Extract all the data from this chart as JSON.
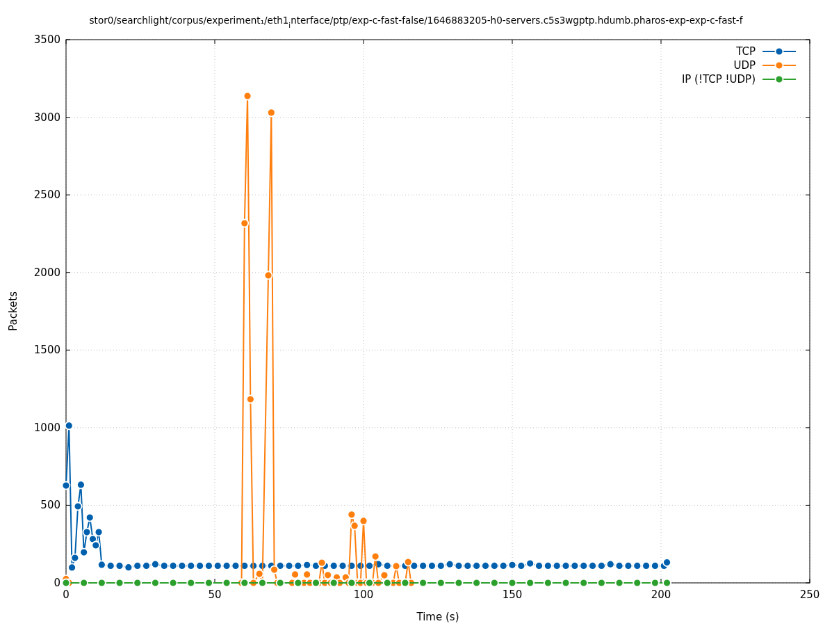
{
  "chart_data": {
    "type": "line",
    "title": "stor0/searchlight/corpus/experiment₁/eth1$_{i}$nterface/ptp/exp-c-fast-false/1646883205-h0-servers.c5s3wgptp.hdumb.pharos-exp-exp-c-fast-f",
    "xlabel": "Time (s)",
    "ylabel": "Packets",
    "xlim": [
      0,
      250
    ],
    "ylim": [
      0,
      3500
    ],
    "xticks": [
      0,
      50,
      100,
      150,
      200,
      250
    ],
    "yticks": [
      0,
      500,
      1000,
      1500,
      2000,
      2500,
      3000,
      3500
    ],
    "grid": true,
    "legend": "top right",
    "marker": "circle",
    "line_style": "solid",
    "series": [
      {
        "name": "TCP",
        "color": "#0060ad",
        "x": [
          0,
          1,
          2,
          3,
          4,
          5,
          6,
          7,
          8,
          9,
          10,
          11,
          12,
          15,
          18,
          21,
          24,
          27,
          30,
          33,
          36,
          39,
          42,
          45,
          48,
          51,
          54,
          57,
          60,
          63,
          66,
          69,
          72,
          75,
          78,
          81,
          84,
          87,
          90,
          93,
          96,
          99,
          102,
          105,
          108,
          111,
          114,
          117,
          120,
          123,
          126,
          129,
          132,
          135,
          138,
          141,
          144,
          147,
          150,
          153,
          156,
          159,
          162,
          165,
          168,
          171,
          174,
          177,
          180,
          183,
          186,
          189,
          192,
          195,
          198,
          201,
          202
        ],
        "values": [
          627,
          1013,
          99,
          161,
          493,
          632,
          197,
          327,
          421,
          282,
          242,
          327,
          117,
          110,
          110,
          100,
          110,
          110,
          120,
          110,
          110,
          110,
          110,
          110,
          110,
          110,
          110,
          110,
          110,
          110,
          110,
          110,
          110,
          110,
          110,
          115,
          110,
          110,
          110,
          110,
          110,
          110,
          110,
          120,
          110,
          110,
          110,
          110,
          110,
          110,
          110,
          120,
          110,
          110,
          110,
          110,
          110,
          110,
          115,
          110,
          125,
          110,
          110,
          110,
          110,
          110,
          110,
          110,
          110,
          120,
          110,
          110,
          110,
          110,
          110,
          110,
          132
        ]
      },
      {
        "name": "UDP",
        "color": "#ff7f0e",
        "x": [
          0,
          1,
          30,
          59,
          60,
          61,
          62,
          63,
          65,
          66,
          68,
          69,
          70,
          71,
          76,
          77,
          78,
          80,
          81,
          82,
          85,
          86,
          87,
          88,
          89,
          91,
          92,
          94,
          95,
          96,
          97,
          98,
          99,
          100,
          101,
          103,
          104,
          105,
          107,
          108,
          110,
          111,
          112,
          114,
          115,
          116,
          202
        ],
        "values": [
          25,
          0,
          0,
          0,
          2317,
          3137,
          1183,
          0,
          58,
          0,
          1981,
          3030,
          85,
          0,
          0,
          54,
          0,
          0,
          54,
          0,
          0,
          130,
          0,
          50,
          0,
          35,
          0,
          35,
          0,
          440,
          368,
          0,
          0,
          399,
          0,
          0,
          170,
          0,
          49,
          0,
          0,
          108,
          0,
          0,
          134,
          0,
          0
        ]
      },
      {
        "name": "IP (!TCP  !UDP)",
        "color": "#2ca02c",
        "x": [
          0,
          6,
          12,
          18,
          24,
          30,
          36,
          42,
          48,
          54,
          60,
          66,
          72,
          78,
          84,
          90,
          96,
          102,
          108,
          114,
          120,
          126,
          132,
          138,
          144,
          150,
          156,
          162,
          168,
          174,
          180,
          186,
          192,
          198,
          202
        ],
        "values": [
          0,
          0,
          0,
          0,
          0,
          0,
          0,
          0,
          0,
          0,
          0,
          0,
          0,
          0,
          0,
          0,
          0,
          0,
          0,
          0,
          0,
          0,
          0,
          0,
          0,
          0,
          0,
          0,
          0,
          0,
          0,
          0,
          0,
          0,
          0
        ]
      }
    ]
  }
}
